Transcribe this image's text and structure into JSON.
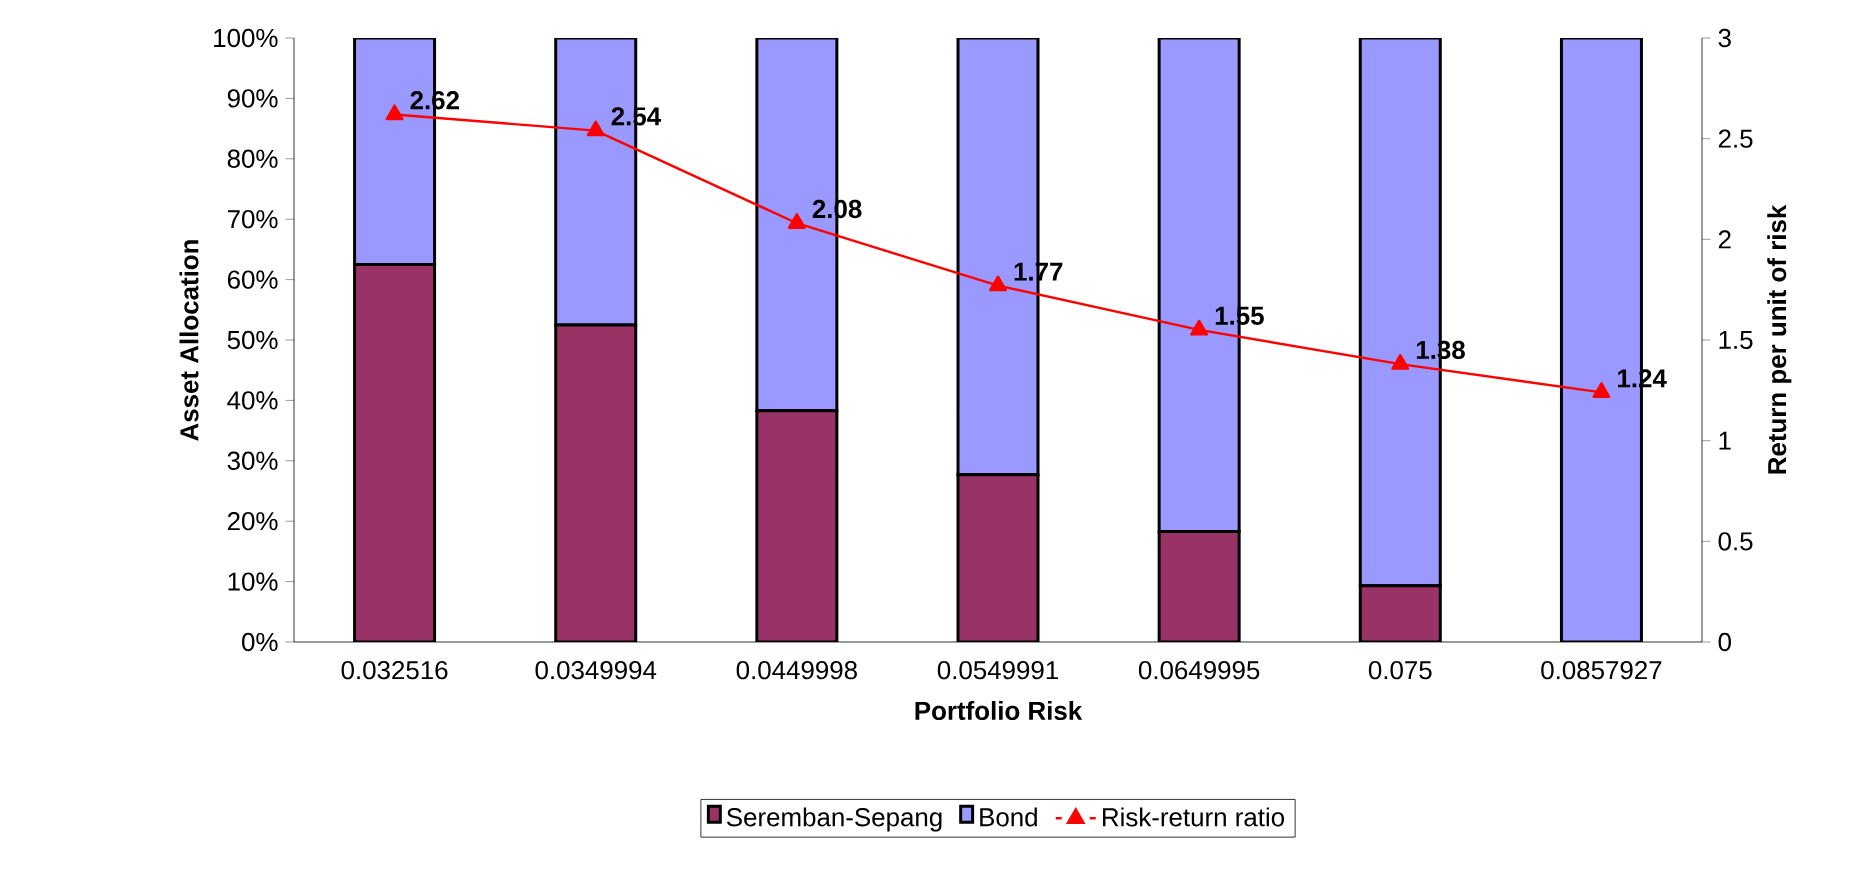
{
  "chart_data": {
    "type": "bar",
    "stacked": true,
    "xlabel": "Portfolio Risk",
    "ylabel": "Asset Allocation",
    "y2label": "Return per unit of risk",
    "categories": [
      "0.032516",
      "0.0349994",
      "0.0449998",
      "0.0549991",
      "0.0649995",
      "0.075",
      "0.0857927"
    ],
    "series": [
      {
        "name": "Seremban-Sepang",
        "color": "#993366",
        "values": [
          62.5,
          52.5,
          38.3,
          27.7,
          18.3,
          9.3,
          0
        ]
      },
      {
        "name": "Bond",
        "color": "#9999ff",
        "values": [
          37.5,
          47.5,
          61.7,
          72.3,
          81.7,
          90.7,
          100
        ]
      },
      {
        "name": "Risk-return ratio",
        "type": "line",
        "axis": "y2",
        "color": "#ff0000",
        "marker": "triangle",
        "data_labels": true,
        "values": [
          2.62,
          2.54,
          2.08,
          1.77,
          1.55,
          1.38,
          1.24
        ]
      }
    ],
    "ylim": [
      0,
      100
    ],
    "yticks": [
      {
        "value": 0,
        "label": "0%"
      },
      {
        "value": 10,
        "label": "10%"
      },
      {
        "value": 20,
        "label": "20%"
      },
      {
        "value": 30,
        "label": "30%"
      },
      {
        "value": 40,
        "label": "40%"
      },
      {
        "value": 50,
        "label": "50%"
      },
      {
        "value": 60,
        "label": "60%"
      },
      {
        "value": 70,
        "label": "70%"
      },
      {
        "value": 80,
        "label": "80%"
      },
      {
        "value": 90,
        "label": "90%"
      },
      {
        "value": 100,
        "label": "100%"
      }
    ],
    "y2lim": [
      0,
      3
    ],
    "y2ticks": [
      0,
      0.5,
      1,
      1.5,
      2,
      2.5,
      3
    ],
    "legend": "bottom",
    "grid": false
  }
}
